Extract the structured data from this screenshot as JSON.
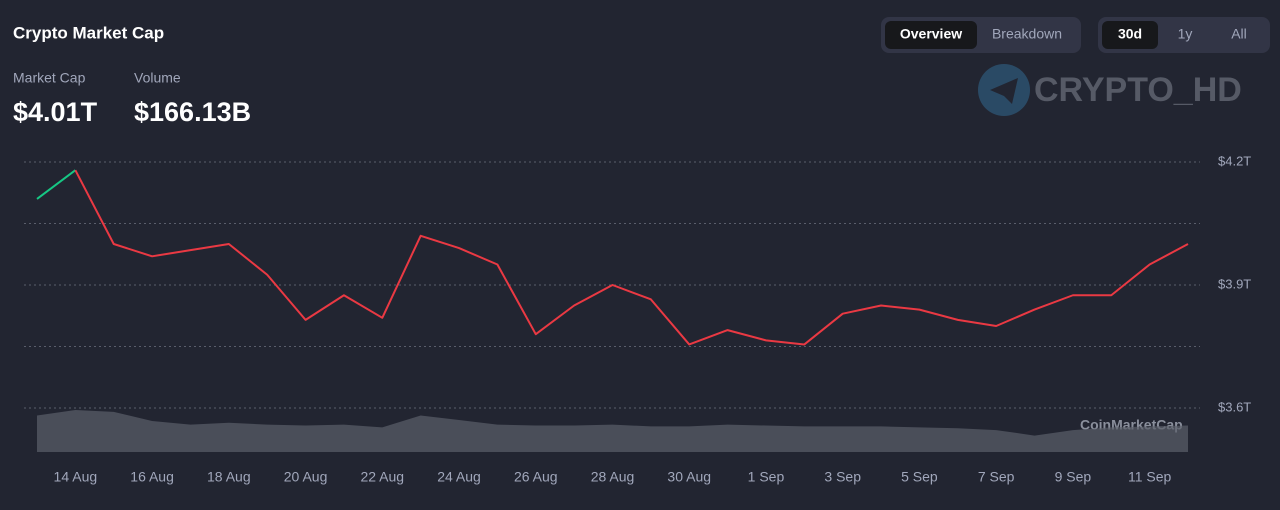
{
  "header": {
    "title": "Crypto Market Cap",
    "stats": [
      {
        "label": "Market Cap",
        "value": "$4.01T"
      },
      {
        "label": "Volume",
        "value": "$166.13B"
      }
    ]
  },
  "view_tabs": [
    "Overview",
    "Breakdown"
  ],
  "active_view": 0,
  "range_tabs": [
    "30d",
    "1y",
    "All"
  ],
  "active_range": 0,
  "watermarks": [
    "CRYPTO_HD",
    "CoinMarketCap"
  ],
  "chart_data": {
    "type": "line",
    "categories": [
      null,
      "14 Aug",
      null,
      "16 Aug",
      null,
      "18 Aug",
      null,
      "20 Aug",
      null,
      "22 Aug",
      null,
      "24 Aug",
      null,
      "26 Aug",
      null,
      "28 Aug",
      null,
      "30 Aug",
      null,
      "1 Sep",
      null,
      "3 Sep",
      null,
      "5 Sep",
      null,
      "7 Sep",
      null,
      "9 Sep",
      null,
      "11 Sep",
      null
    ],
    "series": [
      {
        "name": "Market Cap",
        "up_color": "#16c784",
        "down_color": "#ea3943",
        "values": [
          4.11,
          4.18,
          4.0,
          3.97,
          3.985,
          4.0,
          3.925,
          3.815,
          3.875,
          3.82,
          4.02,
          3.99,
          3.95,
          3.78,
          3.85,
          3.9,
          3.865,
          3.755,
          3.79,
          3.765,
          3.755,
          3.83,
          3.85,
          3.84,
          3.815,
          3.8,
          3.84,
          3.875,
          3.875,
          3.95,
          4.0
        ]
      },
      {
        "name": "Volume",
        "color": "#5b5f6b",
        "values": [
          200,
          230,
          220,
          170,
          150,
          160,
          150,
          145,
          150,
          135,
          200,
          175,
          150,
          145,
          145,
          150,
          140,
          140,
          150,
          145,
          140,
          140,
          140,
          135,
          130,
          120,
          90,
          120,
          135,
          140,
          145
        ]
      }
    ],
    "ylim": [
      3.6,
      4.2
    ],
    "yticks": [
      {
        "value": 3.6,
        "label": "$3.6T"
      },
      {
        "value": 3.9,
        "label": "$3.9T"
      },
      {
        "value": 4.2,
        "label": "$4.2T"
      }
    ],
    "gridlines": [
      3.6,
      3.75,
      3.9,
      4.05,
      4.2
    ],
    "grid": true
  }
}
